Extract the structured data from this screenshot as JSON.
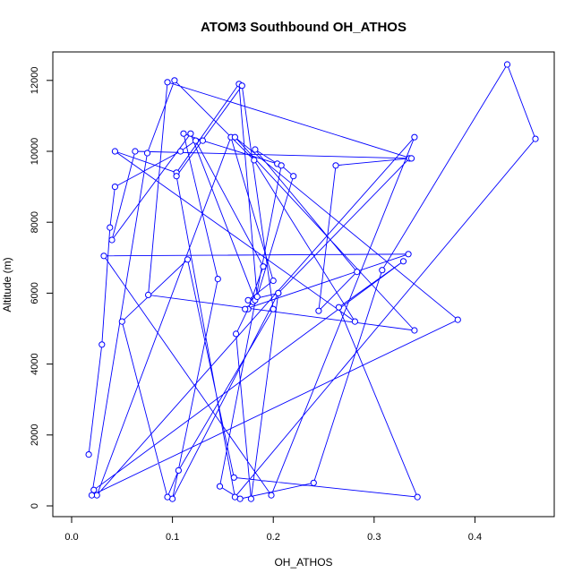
{
  "chart_data": {
    "type": "line",
    "title": "ATOM3 Southbound OH_ATHOS",
    "xlabel": "OH_ATHOS",
    "ylabel": "Altitude (m)",
    "xlim": [
      0,
      0.46
    ],
    "ylim": [
      0,
      12500
    ],
    "x_ticks": [
      0.0,
      0.1,
      0.2,
      0.3,
      0.4
    ],
    "x_tick_labels": [
      "0.0",
      "0.1",
      "0.2",
      "0.3",
      "0.4"
    ],
    "y_ticks": [
      0,
      2000,
      4000,
      6000,
      8000,
      10000,
      12000
    ],
    "y_tick_labels": [
      "0",
      "2000",
      "4000",
      "6000",
      "8000",
      "10000",
      "12000"
    ],
    "grid": false,
    "marker": "open-circle",
    "series": [
      {
        "color": "#0000ff",
        "x": [
          0.017,
          0.03,
          0.038,
          0.043,
          0.108,
          0.123,
          0.19,
          0.175,
          0.163,
          0.178,
          0.205,
          0.335,
          0.262,
          0.245,
          0.283,
          0.182,
          0.204,
          0.13,
          0.111,
          0.145,
          0.1,
          0.205,
          0.175,
          0.2,
          0.158,
          0.025,
          0.34,
          0.198,
          0.032,
          0.334,
          0.172,
          0.18,
          0.182,
          0.118,
          0.04,
          0.063,
          0.337,
          0.095,
          0.076,
          0.34,
          0.162,
          0.383,
          0.02,
          0.075,
          0.102,
          0.181,
          0.281,
          0.043,
          0.104,
          0.166,
          0.184,
          0.22,
          0.208,
          0.147,
          0.167,
          0.24,
          0.308,
          0.432,
          0.46,
          0.162,
          0.104,
          0.169,
          0.2,
          0.106,
          0.095,
          0.05,
          0.115,
          0.161,
          0.343,
          0.265,
          0.329,
          0.022
        ],
        "y": [
          1450,
          4550,
          7850,
          9000,
          10000,
          10300,
          6750,
          5550,
          4850,
          200,
          6000,
          9800,
          9600,
          5500,
          6600,
          10050,
          9650,
          10300,
          10500,
          6400,
          200,
          6000,
          5800,
          6350,
          10400,
          300,
          10400,
          300,
          7050,
          7100,
          5550,
          5750,
          5800,
          10500,
          7500,
          10000,
          9800,
          11950,
          5950,
          4950,
          10400,
          5250,
          300,
          9950,
          12000,
          9750,
          5200,
          10000,
          9400,
          11900,
          5900,
          9300,
          9600,
          550,
          200,
          650,
          6650,
          12450,
          10350,
          250,
          9300,
          11850,
          5550,
          1000,
          250,
          5200,
          6950,
          800,
          250,
          5600,
          6900,
          450
        ]
      }
    ]
  }
}
